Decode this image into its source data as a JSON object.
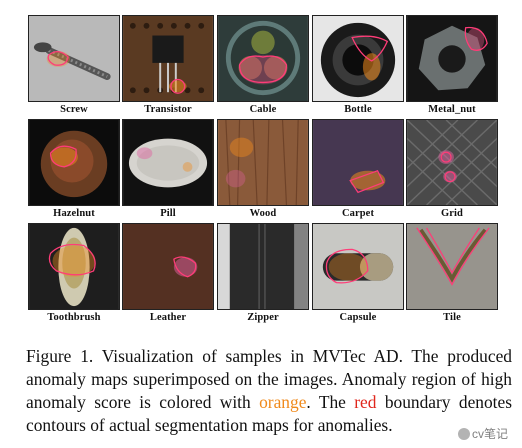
{
  "figure": {
    "rows": [
      [
        {
          "label": "Screw"
        },
        {
          "label": "Transistor"
        },
        {
          "label": "Cable"
        },
        {
          "label": "Bottle"
        },
        {
          "label": "Metal_nut"
        }
      ],
      [
        {
          "label": "Hazelnut"
        },
        {
          "label": "Pill"
        },
        {
          "label": "Wood"
        },
        {
          "label": "Carpet"
        },
        {
          "label": "Grid"
        }
      ],
      [
        {
          "label": "Toothbrush"
        },
        {
          "label": "Leather"
        },
        {
          "label": "Zipper"
        },
        {
          "label": "Capsule"
        },
        {
          "label": "Tile"
        }
      ]
    ]
  },
  "caption": {
    "part1": "Figure 1. Visualization of samples in MVTec AD. The produced anomaly maps superimposed on the images. Anomaly region of high anomaly score is colored with ",
    "orange_word": "orange",
    "part2": ". The ",
    "red_word": "red",
    "part3": " boundary denotes contours of actual segmentation maps for anomalies."
  },
  "watermark": {
    "text": "cv笔记"
  },
  "colors": {
    "orange": "#f08a1c",
    "red": "#e0261c",
    "contour": "#ff3c78"
  }
}
